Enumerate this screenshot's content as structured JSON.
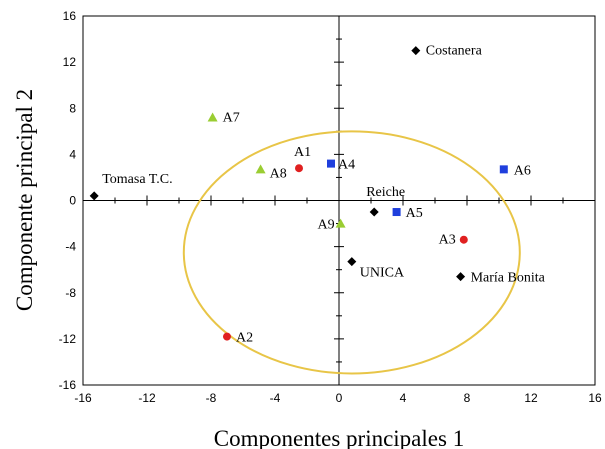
{
  "chart_data": {
    "type": "scatter",
    "title": "",
    "xlabel": "Componentes principales 1",
    "ylabel": "Componente principal 2",
    "xlim": [
      -16,
      16
    ],
    "ylim": [
      -16,
      16
    ],
    "xticks": [
      "-16",
      "-12",
      "-8",
      "-4",
      "0",
      "4",
      "8",
      "12",
      "16"
    ],
    "yticks": [
      "16",
      "12",
      "8",
      "4",
      "0",
      "-4",
      "-8",
      "-12",
      "-16"
    ],
    "grid": false,
    "circle": {
      "center": [
        0.8,
        -4.5
      ],
      "radius": 10.5,
      "color": "#e8c547"
    },
    "series": [
      {
        "marker": "diamond",
        "color": "#000000",
        "points": [
          {
            "label": "Costanera",
            "x": 4.8,
            "y": 13.0
          },
          {
            "label": "Tomasa T.C.",
            "x": -15.3,
            "y": 0.4
          },
          {
            "label": "Reiche",
            "x": 2.2,
            "y": -1.0
          },
          {
            "label": "UNICA",
            "x": 0.8,
            "y": -5.3
          },
          {
            "label": "María Bonita",
            "x": 7.6,
            "y": -6.6
          }
        ]
      },
      {
        "marker": "circle",
        "color": "#e02020",
        "points": [
          {
            "label": "A1",
            "x": -2.5,
            "y": 2.8
          },
          {
            "label": "A2",
            "x": -7.0,
            "y": -11.8
          },
          {
            "label": "A3",
            "x": 7.8,
            "y": -3.4
          }
        ]
      },
      {
        "marker": "square",
        "color": "#1f3fdd",
        "points": [
          {
            "label": "A4",
            "x": -0.5,
            "y": 3.2
          },
          {
            "label": "A5",
            "x": 3.6,
            "y": -1.0
          },
          {
            "label": "A6",
            "x": 10.3,
            "y": 2.7
          }
        ]
      },
      {
        "marker": "triangle",
        "color": "#9acd32",
        "points": [
          {
            "label": "A7",
            "x": -7.9,
            "y": 7.2
          },
          {
            "label": "A8",
            "x": -4.9,
            "y": 2.7
          },
          {
            "label": "A9",
            "x": 0.1,
            "y": -2.0
          }
        ]
      }
    ]
  }
}
